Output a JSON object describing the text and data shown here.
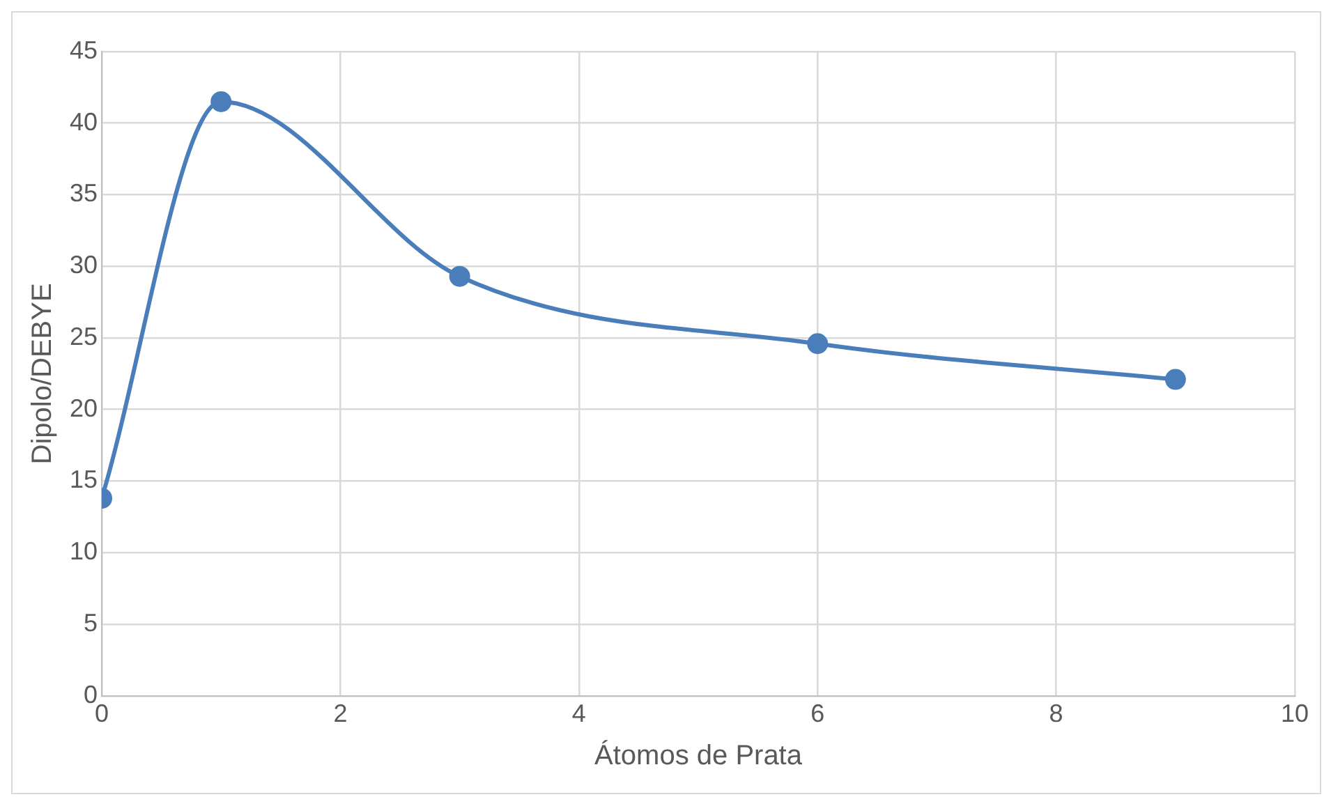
{
  "chart_data": {
    "type": "line",
    "xlabel": "Átomos de Prata",
    "ylabel": "Dipolo/DEBYE",
    "x": [
      0,
      1,
      3,
      6,
      9
    ],
    "series": [
      {
        "color": "#4a7ebb",
        "values": [
          13.8,
          41.5,
          29.3,
          24.6,
          22.1
        ]
      }
    ],
    "xlim": [
      0,
      10
    ],
    "xticks": [
      0,
      2,
      4,
      6,
      8,
      10
    ],
    "ylim": [
      0,
      45
    ],
    "yticks": [
      0,
      5,
      10,
      15,
      20,
      25,
      30,
      35,
      40,
      45
    ],
    "grid": true,
    "legend": false,
    "marker": "circle",
    "line_style": "solid"
  }
}
